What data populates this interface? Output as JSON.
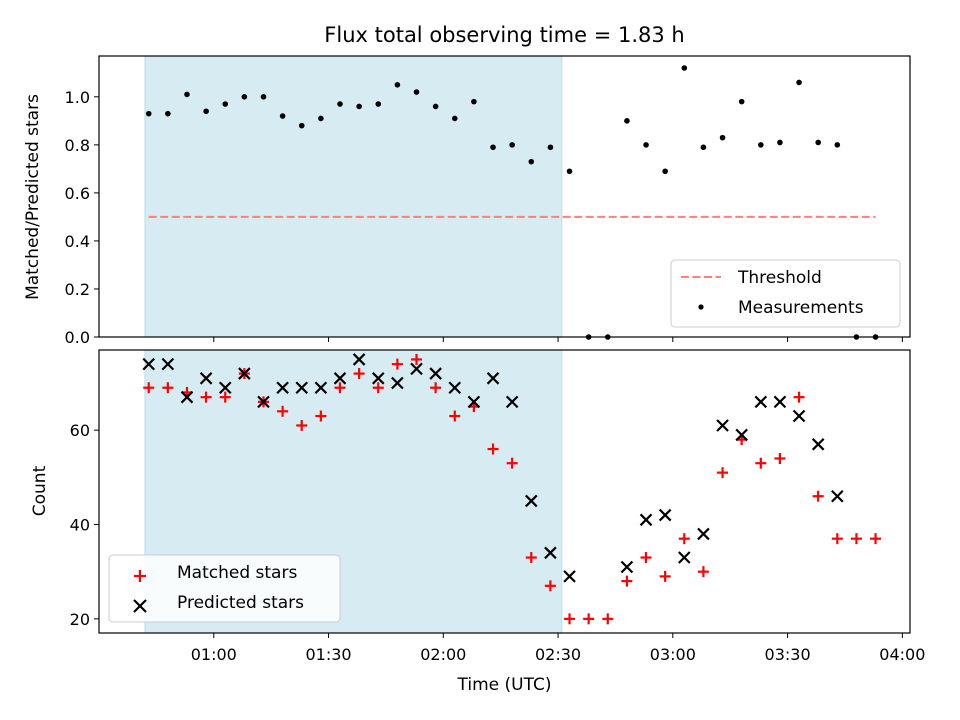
{
  "chart_data": [
    {
      "type": "scatter",
      "title": "Flux total observing time = 1.83 h",
      "xlabel": "",
      "ylabel": "Matched/Predicted stars",
      "ylim": [
        0,
        1.17
      ],
      "y_ticks": [
        "0.0",
        "0.2",
        "0.4",
        "0.6",
        "0.8",
        "1.0"
      ],
      "shaded_interval": [
        "00:42",
        "02:31"
      ],
      "threshold": {
        "name": "Threshold",
        "value": 0.5,
        "color": "#ff7f7f",
        "style": "dashed"
      },
      "series": [
        {
          "name": "Measurements",
          "color": "#000000",
          "x": [
            "00:43",
            "00:48",
            "00:53",
            "00:58",
            "01:03",
            "01:08",
            "01:13",
            "01:18",
            "01:23",
            "01:28",
            "01:33",
            "01:38",
            "01:43",
            "01:48",
            "01:53",
            "01:58",
            "02:03",
            "02:08",
            "02:13",
            "02:18",
            "02:23",
            "02:28",
            "02:33",
            "02:38",
            "02:43",
            "02:48",
            "02:53",
            "02:58",
            "03:03",
            "03:08",
            "03:13",
            "03:18",
            "03:23",
            "03:28",
            "03:33",
            "03:38",
            "03:43",
            "03:48",
            "03:53"
          ],
          "y": [
            0.93,
            0.93,
            1.01,
            0.94,
            0.97,
            1.0,
            1.0,
            0.92,
            0.88,
            0.91,
            0.97,
            0.96,
            0.97,
            1.05,
            1.02,
            0.96,
            0.91,
            0.98,
            0.79,
            0.8,
            0.73,
            0.79,
            0.69,
            0.0,
            0.0,
            0.9,
            0.8,
            0.69,
            1.12,
            0.79,
            0.83,
            0.98,
            0.8,
            0.81,
            1.06,
            0.81,
            0.8,
            0.0,
            0.0
          ]
        }
      ],
      "legend": "lower right"
    },
    {
      "type": "scatter",
      "title": "",
      "xlabel": "Time (UTC)",
      "ylabel": "Count",
      "ylim": [
        17,
        77
      ],
      "y_ticks": [
        "20",
        "40",
        "60"
      ],
      "x_ticks": [
        "01:00",
        "01:30",
        "02:00",
        "02:30",
        "03:00",
        "03:30",
        "04:00"
      ],
      "shaded_interval": [
        "00:42",
        "02:31"
      ],
      "series": [
        {
          "name": "Matched stars",
          "marker": "plus",
          "color": "#ff0000",
          "x": [
            "00:43",
            "00:48",
            "00:53",
            "00:58",
            "01:03",
            "01:08",
            "01:13",
            "01:18",
            "01:23",
            "01:28",
            "01:33",
            "01:38",
            "01:43",
            "01:48",
            "01:53",
            "01:58",
            "02:03",
            "02:08",
            "02:13",
            "02:18",
            "02:23",
            "02:28",
            "02:33",
            "02:38",
            "02:43",
            "02:48",
            "02:53",
            "02:58",
            "03:03",
            "03:08",
            "03:13",
            "03:18",
            "03:23",
            "03:28",
            "03:33",
            "03:38",
            "03:43",
            "03:48",
            "03:53"
          ],
          "y": [
            69,
            69,
            68,
            67,
            67,
            72,
            66,
            64,
            61,
            63,
            69,
            72,
            69,
            74,
            75,
            69,
            63,
            65,
            56,
            53,
            33,
            27,
            20,
            20,
            20,
            28,
            33,
            29,
            37,
            30,
            51,
            58,
            53,
            54,
            67,
            46,
            37,
            37,
            37
          ]
        },
        {
          "name": "Predicted stars",
          "marker": "x",
          "color": "#000000",
          "x": [
            "00:43",
            "00:48",
            "00:53",
            "00:58",
            "01:03",
            "01:08",
            "01:13",
            "01:18",
            "01:23",
            "01:28",
            "01:33",
            "01:38",
            "01:43",
            "01:48",
            "01:53",
            "01:58",
            "02:03",
            "02:08",
            "02:13",
            "02:18",
            "02:23",
            "02:28",
            "02:33",
            "02:48",
            "02:53",
            "02:58",
            "03:03",
            "03:08",
            "03:13",
            "03:18",
            "03:23",
            "03:28",
            "03:33",
            "03:38",
            "03:43"
          ],
          "y": [
            74,
            74,
            67,
            71,
            69,
            72,
            66,
            69,
            69,
            69,
            71,
            75,
            71,
            70,
            73,
            72,
            69,
            66,
            71,
            66,
            45,
            34,
            29,
            31,
            41,
            42,
            33,
            38,
            61,
            59,
            66,
            66,
            63,
            57,
            46
          ]
        }
      ],
      "legend": "lower left"
    }
  ]
}
